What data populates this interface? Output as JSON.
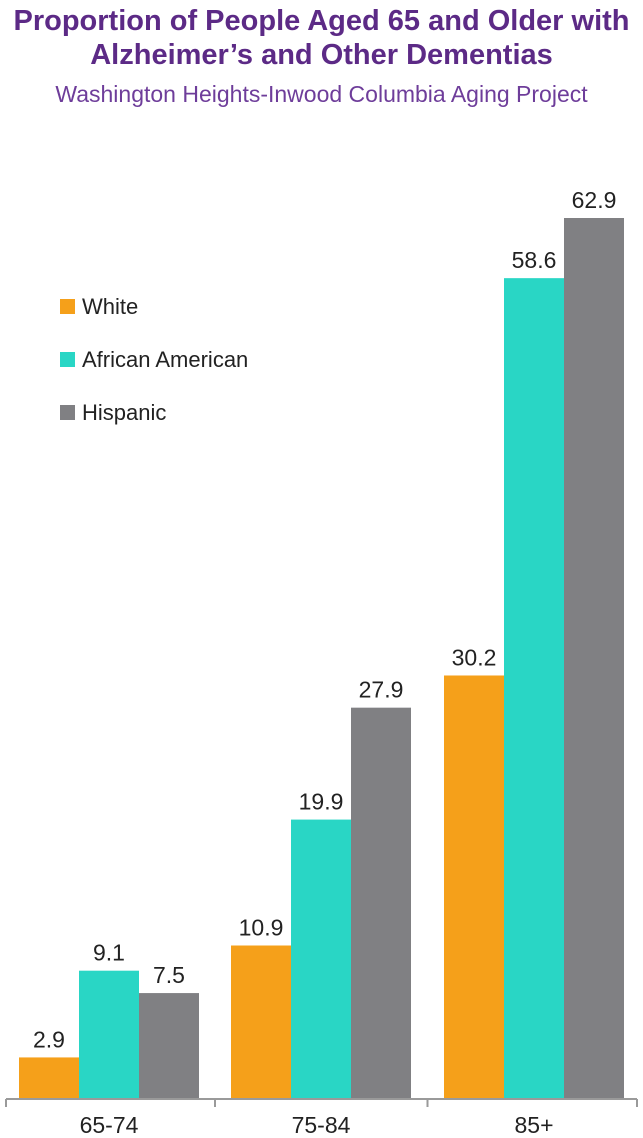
{
  "chart_data": {
    "type": "bar",
    "title": "Proportion of People Aged 65 and Older with Alzheimer’s and Other Dementias",
    "subtitle": "Washington Heights-Inwood Columbia Aging Project",
    "categories": [
      "65-74",
      "75-84",
      "85+"
    ],
    "series": [
      {
        "name": "White",
        "color": "#f5a01a",
        "values": [
          2.9,
          10.9,
          30.2
        ]
      },
      {
        "name": "African American",
        "color": "#29d6c5",
        "values": [
          9.1,
          19.9,
          58.6
        ]
      },
      {
        "name": "Hispanic",
        "color": "#808083",
        "values": [
          7.5,
          27.9,
          62.9
        ]
      }
    ],
    "ylim": [
      0,
      65
    ],
    "grid": false,
    "legend_position": "top-left"
  }
}
